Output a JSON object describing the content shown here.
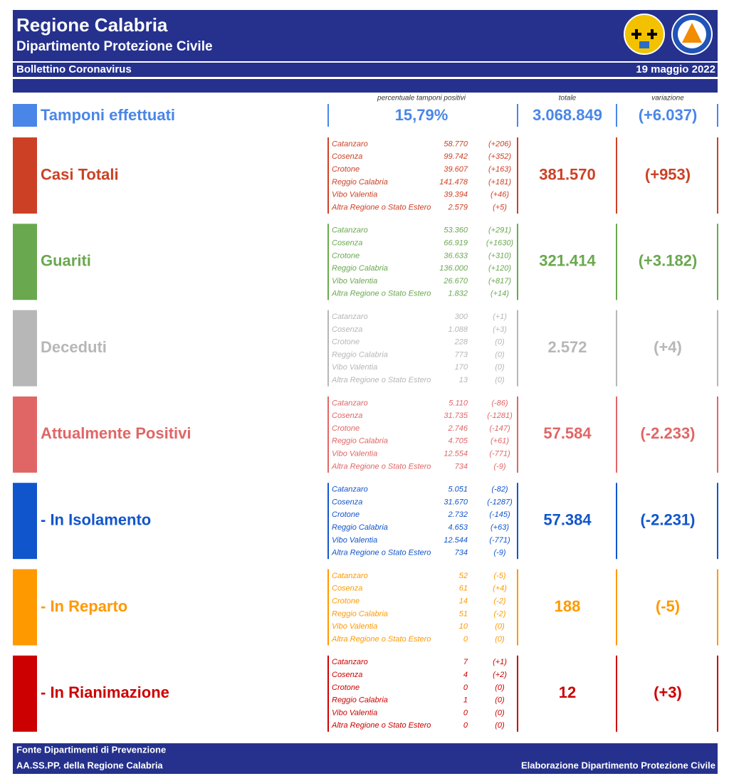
{
  "header": {
    "title": "Regione Calabria",
    "subtitle": "Dipartimento Protezione Civile",
    "bulletin": "Bollettino Coronavirus",
    "date": "19 maggio 2022"
  },
  "columns": {
    "positivity": "percentuale tamponi positivi",
    "total": "totale",
    "variation": "variazione"
  },
  "tests": {
    "label": "Tamponi effettuati",
    "color": "#4a86e8",
    "positivity": "15,79%",
    "total": "3.068.849",
    "variation": "(+6.037)"
  },
  "sections": [
    {
      "label": "Casi Totali",
      "color": "#cc4125",
      "total": "381.570",
      "variation": "(+953)",
      "rows": [
        {
          "province": "Catanzaro",
          "value": "58.770",
          "change": "(+206)"
        },
        {
          "province": "Cosenza",
          "value": "99.742",
          "change": "(+352)"
        },
        {
          "province": "Crotone",
          "value": "39.607",
          "change": "(+163)"
        },
        {
          "province": "Reggio Calabria",
          "value": "141.478",
          "change": "(+181)"
        },
        {
          "province": "Vibo Valentia",
          "value": "39.394",
          "change": "(+46)"
        },
        {
          "province": "Altra Regione o Stato Estero",
          "value": "2.579",
          "change": "(+5)"
        }
      ]
    },
    {
      "label": "Guariti",
      "color": "#6aa84f",
      "total": "321.414",
      "variation": "(+3.182)",
      "rows": [
        {
          "province": "Catanzaro",
          "value": "53.360",
          "change": "(+291)"
        },
        {
          "province": "Cosenza",
          "value": "66.919",
          "change": "(+1630)"
        },
        {
          "province": "Crotone",
          "value": "36.633",
          "change": "(+310)"
        },
        {
          "province": "Reggio Calabria",
          "value": "136.000",
          "change": "(+120)"
        },
        {
          "province": "Vibo Valentia",
          "value": "26.670",
          "change": "(+817)"
        },
        {
          "province": "Altra Regione o Stato Estero",
          "value": "1.832",
          "change": "(+14)"
        }
      ]
    },
    {
      "label": "Deceduti",
      "color": "#b7b7b7",
      "total": "2.572",
      "variation": "(+4)",
      "rows": [
        {
          "province": "Catanzaro",
          "value": "300",
          "change": "(+1)"
        },
        {
          "province": "Cosenza",
          "value": "1.088",
          "change": "(+3)"
        },
        {
          "province": "Crotone",
          "value": "228",
          "change": "(0)"
        },
        {
          "province": "Reggio Calabria",
          "value": "773",
          "change": "(0)"
        },
        {
          "province": "Vibo Valentia",
          "value": "170",
          "change": "(0)"
        },
        {
          "province": "Altra Regione o Stato Estero",
          "value": "13",
          "change": "(0)"
        }
      ]
    },
    {
      "label": "Attualmente Positivi",
      "color": "#e06666",
      "total": "57.584",
      "variation": "(-2.233)",
      "rows": [
        {
          "province": "Catanzaro",
          "value": "5.110",
          "change": "(-86)"
        },
        {
          "province": "Cosenza",
          "value": "31.735",
          "change": "(-1281)"
        },
        {
          "province": "Crotone",
          "value": "2.746",
          "change": "(-147)"
        },
        {
          "province": "Reggio Calabria",
          "value": "4.705",
          "change": "(+61)"
        },
        {
          "province": "Vibo Valentia",
          "value": "12.554",
          "change": "(-771)"
        },
        {
          "province": "Altra Regione o Stato Estero",
          "value": "734",
          "change": "(-9)"
        }
      ]
    },
    {
      "label": "- In Isolamento",
      "color": "#1155cc",
      "total": "57.384",
      "variation": "(-2.231)",
      "rows": [
        {
          "province": "Catanzaro",
          "value": "5.051",
          "change": "(-82)"
        },
        {
          "province": "Cosenza",
          "value": "31.670",
          "change": "(-1287)"
        },
        {
          "province": "Crotone",
          "value": "2.732",
          "change": "(-145)"
        },
        {
          "province": "Reggio Calabria",
          "value": "4.653",
          "change": "(+63)"
        },
        {
          "province": "Vibo Valentia",
          "value": "12.544",
          "change": "(-771)"
        },
        {
          "province": "Altra Regione o Stato Estero",
          "value": "734",
          "change": "(-9)"
        }
      ]
    },
    {
      "label": "- In Reparto",
      "color": "#ff9900",
      "total": "188",
      "variation": "(-5)",
      "rows": [
        {
          "province": "Catanzaro",
          "value": "52",
          "change": "(-5)"
        },
        {
          "province": "Cosenza",
          "value": "61",
          "change": "(+4)"
        },
        {
          "province": "Crotone",
          "value": "14",
          "change": "(-2)"
        },
        {
          "province": "Reggio Calabria",
          "value": "51",
          "change": "(-2)"
        },
        {
          "province": "Vibo Valentia",
          "value": "10",
          "change": "(0)"
        },
        {
          "province": "Altra Regione o Stato Estero",
          "value": "0",
          "change": "(0)"
        }
      ]
    },
    {
      "label": "- In Rianimazione",
      "color": "#cc0000",
      "total": "12",
      "variation": "(+3)",
      "rows": [
        {
          "province": "Catanzaro",
          "value": "7",
          "change": "(+1)"
        },
        {
          "province": "Cosenza",
          "value": "4",
          "change": "(+2)"
        },
        {
          "province": "Crotone",
          "value": "0",
          "change": "(0)"
        },
        {
          "province": "Reggio Calabria",
          "value": "1",
          "change": "(0)"
        },
        {
          "province": "Vibo Valentia",
          "value": "0",
          "change": "(0)"
        },
        {
          "province": "Altra Regione o Stato Estero",
          "value": "0",
          "change": "(0)"
        }
      ]
    }
  ],
  "footer": {
    "source_line1": "Fonte Dipartimenti di Prevenzione",
    "source_line2": "AA.SS.PP.  della Regione Calabria",
    "credit": "Elaborazione Dipartimento Protezione Civile"
  }
}
